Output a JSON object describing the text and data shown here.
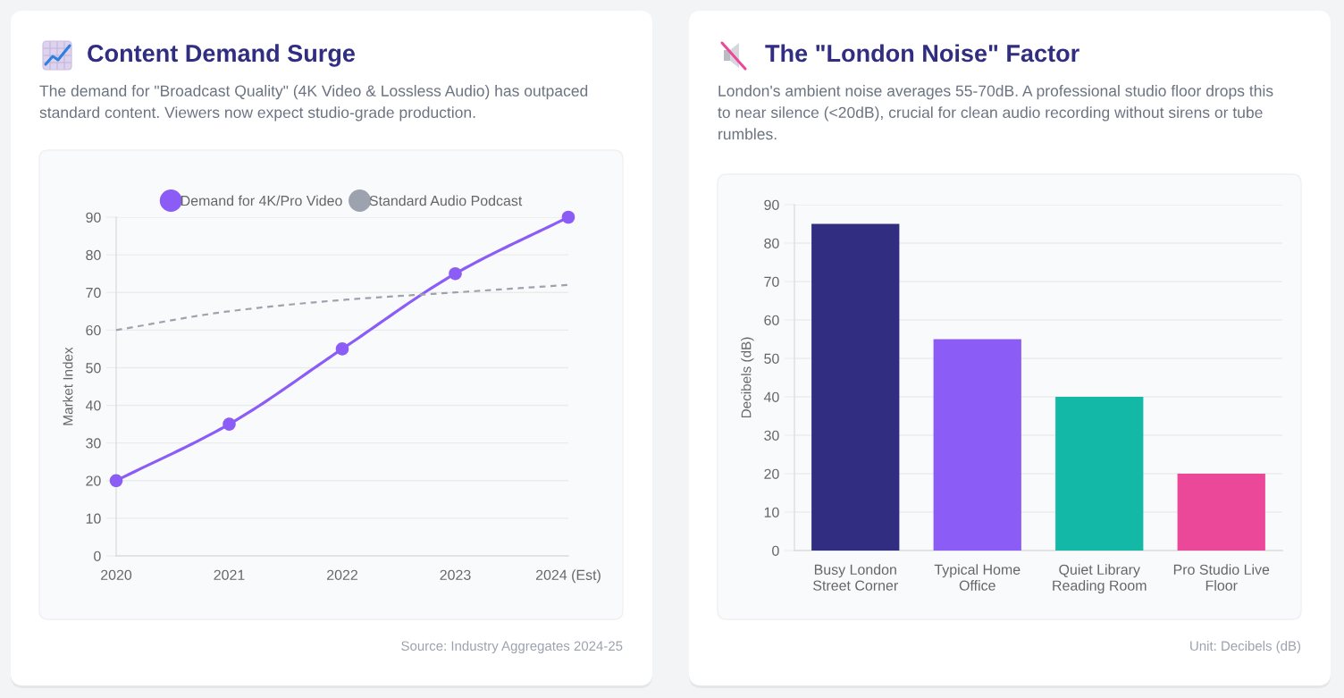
{
  "chart_data": [
    {
      "type": "line",
      "title": "Content Demand Surge",
      "subtitle": "The demand for \"Broadcast Quality\" (4K Video & Lossless Audio) has outpaced standard content. Viewers now expect studio-grade production.",
      "ylabel": "Market Index",
      "categories": [
        "2020",
        "2021",
        "2022",
        "2023",
        "2024 (Est)"
      ],
      "series": [
        {
          "name": "Demand for 4K/Pro Video",
          "color": "#8b5cf6",
          "values": [
            20,
            35,
            55,
            75,
            90
          ],
          "marker": "circle",
          "line_style": "solid"
        },
        {
          "name": "Standard Audio Podcast",
          "color": "#9ca3af",
          "values": [
            60,
            65,
            68,
            70,
            72
          ],
          "marker": "none",
          "line_style": "dashed"
        }
      ],
      "ylim": [
        0,
        90
      ],
      "yticks": [
        0,
        10,
        20,
        30,
        40,
        50,
        60,
        70,
        80,
        90
      ],
      "grid": "y",
      "legend": "top",
      "annotations": [
        "Source: Industry Aggregates 2024-25"
      ]
    },
    {
      "type": "bar",
      "title": "The \"London Noise\" Factor",
      "subtitle": "London's ambient noise averages 55-70dB. A professional studio floor drops this to near silence (<20dB), crucial for clean audio recording without sirens or tube rumbles.",
      "ylabel": "Decibels (dB)",
      "categories": [
        "Busy London Street Corner",
        "Typical Home Office",
        "Quiet Library Reading Room",
        "Pro Studio Live Floor"
      ],
      "values": [
        85,
        55,
        40,
        20
      ],
      "colors": [
        "#312e81",
        "#8b5cf6",
        "#14b8a6",
        "#ec4899"
      ],
      "ylim": [
        0,
        90
      ],
      "yticks": [
        0,
        10,
        20,
        30,
        40,
        50,
        60,
        70,
        80,
        90
      ],
      "grid": "y",
      "annotations": [
        "Unit: Decibels (dB)"
      ]
    }
  ]
}
